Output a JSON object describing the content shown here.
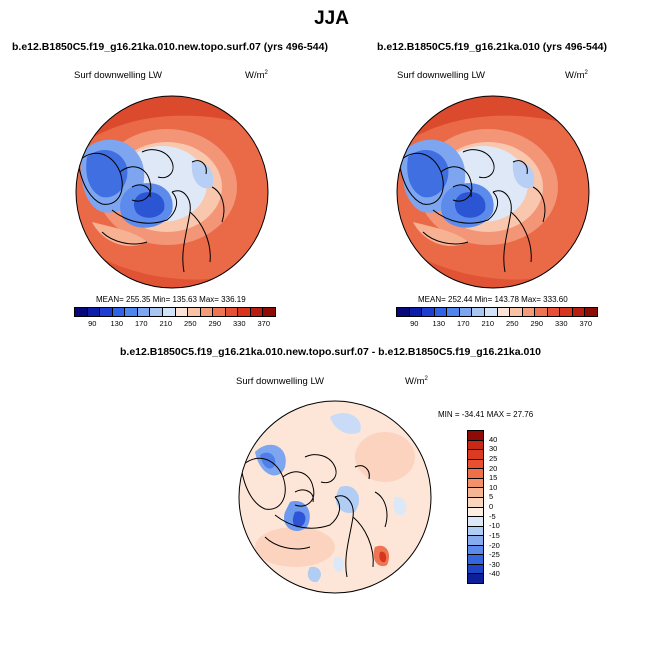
{
  "main_title": "JJA",
  "panels": [
    {
      "title": "b.e12.B1850C5.f19_g16.21ka.010.new.topo.surf.07 (yrs 496-544)",
      "variable": "Surf downwelling LW",
      "units": "W/m",
      "units_exp": "2",
      "stats": "MEAN= 255.35  Min= 135.63  Max= 336.19"
    },
    {
      "title": "b.e12.B1850C5.f19_g16.21ka.010 (yrs 496-544)",
      "variable": "Surf downwelling LW",
      "units": "W/m",
      "units_exp": "2",
      "stats": "MEAN= 252.44  Min= 143.78  Max= 333.60"
    },
    {
      "title": "b.e12.B1850C5.f19_g16.21ka.010.new.topo.surf.07 - b.e12.B1850C5.f19_g16.21ka.010",
      "variable": "Surf downwelling LW",
      "units": "W/m",
      "units_exp": "2",
      "stats": "MIN = -34.41 MAX =  27.76"
    }
  ],
  "abs_colorbar": {
    "labels": [
      "90",
      "130",
      "170",
      "210",
      "250",
      "290",
      "330",
      "370"
    ],
    "colors": [
      "#08087a",
      "#0c1ea8",
      "#1d3ed0",
      "#2f62e6",
      "#4f86ee",
      "#7ea6f0",
      "#a9c6f3",
      "#d3e3f7",
      "#fbe2d4",
      "#f8c2a6",
      "#f39c7a",
      "#ee7553",
      "#e65037",
      "#d73520",
      "#b81d11",
      "#8e0c05"
    ]
  },
  "diff_colorbar": {
    "labels": [
      "40",
      "30",
      "25",
      "20",
      "15",
      "10",
      "5",
      "0",
      "-5",
      "-10",
      "-15",
      "-20",
      "-25",
      "-30",
      "-40"
    ],
    "colors": [
      "#8e0c05",
      "#c62a17",
      "#dd3a22",
      "#e8502f",
      "#ef7048",
      "#f3906a",
      "#f7b493",
      "#fbd6bf",
      "#fdeee4",
      "#dbe8f8",
      "#b1cdf4",
      "#86acef",
      "#5b8aea",
      "#3466de",
      "#1f44c4",
      "#0d1f99"
    ]
  }
}
